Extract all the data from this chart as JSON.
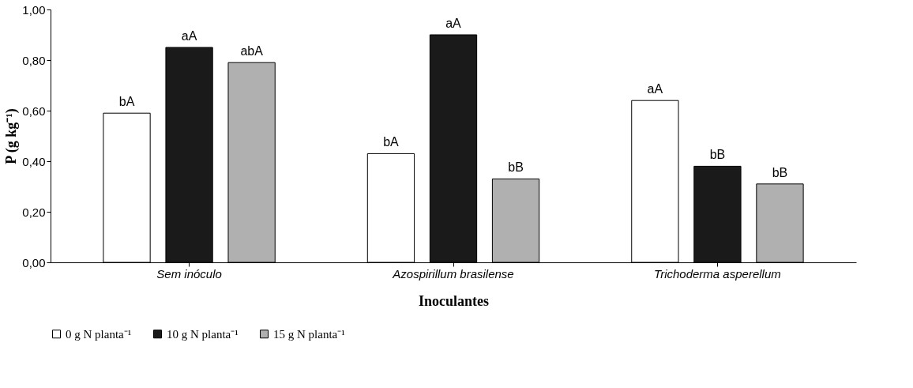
{
  "chart_data": {
    "type": "bar",
    "xlabel": "Inoculantes",
    "ylabel": "P (g kg⁻¹)",
    "categories": [
      "Sem inóculo",
      "Azospirillum brasilense",
      "Trichoderma asperellum"
    ],
    "series": [
      {
        "name": "0 g N planta⁻¹",
        "color": "#ffffff",
        "values": [
          0.59,
          0.43,
          0.64
        ],
        "value_labels": [
          "bA",
          "bA",
          "aA"
        ]
      },
      {
        "name": "10 g N planta⁻¹",
        "color": "#1a1a1a",
        "values": [
          0.85,
          0.9,
          0.38
        ],
        "value_labels": [
          "aA",
          "aA",
          "bB"
        ]
      },
      {
        "name": "15 g N planta⁻¹",
        "color": "#b0b0b0",
        "values": [
          0.79,
          0.33,
          0.31
        ],
        "value_labels": [
          "abA",
          "bB",
          "bB"
        ]
      }
    ],
    "ylim": [
      0,
      1
    ],
    "yticks": [
      {
        "value": 0,
        "label": "0,00"
      },
      {
        "value": 0.2,
        "label": "0,20"
      },
      {
        "value": 0.4,
        "label": "0,40"
      },
      {
        "value": 0.6,
        "label": "0,60"
      },
      {
        "value": 0.8,
        "label": "0,80"
      },
      {
        "value": 1,
        "label": "1,00"
      }
    ],
    "grid": false,
    "legend": "bottom"
  }
}
